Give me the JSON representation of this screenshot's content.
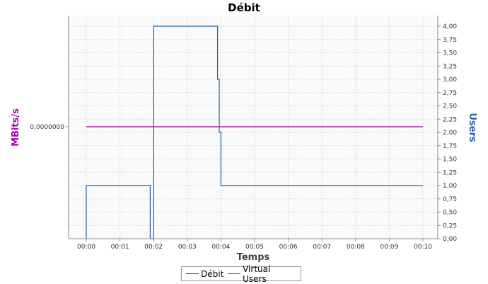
{
  "chart_data": {
    "type": "line",
    "title": "Débit",
    "xlabel": "Temps",
    "x_ticks": [
      "00:00",
      "00:01",
      "00:02",
      "00:03",
      "00:04",
      "00:05",
      "00:06",
      "00:07",
      "00:08",
      "00:09",
      "00:10"
    ],
    "y_left": {
      "label": "MBits/s",
      "tick_labels": [
        "0,0000000"
      ],
      "color": "#aa00aa"
    },
    "y_right": {
      "label": "Users",
      "range": [
        0,
        4
      ],
      "tick_labels": [
        "0,00",
        "0,25",
        "0,50",
        "0,75",
        "1,00",
        "1,25",
        "1,50",
        "1,75",
        "2,00",
        "2,25",
        "2,50",
        "2,75",
        "3,00",
        "3,25",
        "3,50",
        "3,75",
        "4,00"
      ],
      "color": "#1f5fa8"
    },
    "grid": true,
    "legend_position": "bottom",
    "series": [
      {
        "name": "Débit",
        "axis": "left",
        "color": "#990099",
        "points": [
          [
            "00:00",
            0
          ],
          [
            "00:10",
            0
          ]
        ]
      },
      {
        "name": "Virtual Users",
        "axis": "right",
        "color": "#1f5fa8",
        "points": [
          [
            "00:00",
            0
          ],
          [
            "00:00",
            1
          ],
          [
            "00:01.9",
            1
          ],
          [
            "00:01.9",
            0
          ],
          [
            "00:02",
            0
          ],
          [
            "00:02",
            4
          ],
          [
            "00:03.9",
            4
          ],
          [
            "00:03.9",
            3
          ],
          [
            "00:03.95",
            3
          ],
          [
            "00:03.95",
            2
          ],
          [
            "00:04",
            2
          ],
          [
            "00:04",
            1
          ],
          [
            "00:10",
            1
          ]
        ]
      }
    ]
  }
}
